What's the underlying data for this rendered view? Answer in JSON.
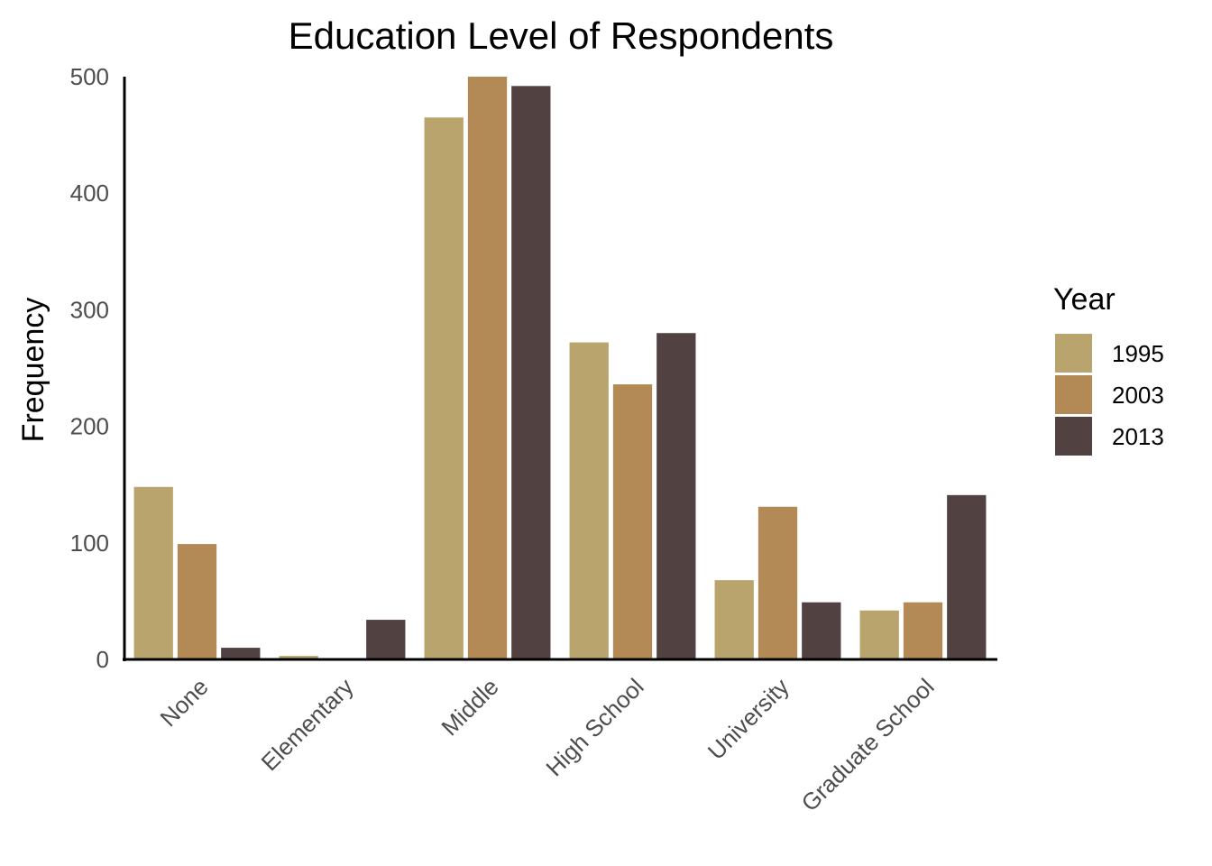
{
  "chart_data": {
    "type": "bar",
    "title": "Education Level of Respondents",
    "xlabel": "",
    "ylabel": "Frequency",
    "ylim": [
      0,
      500
    ],
    "yticks": [
      0,
      100,
      200,
      300,
      400,
      500
    ],
    "categories": [
      "None",
      "Elementary",
      "Middle",
      "High School",
      "University",
      "Graduate School"
    ],
    "legend": {
      "title": "Year",
      "position": "right"
    },
    "grid": false,
    "series": [
      {
        "name": "1995",
        "color": "#b8a46c",
        "values": [
          148,
          3,
          465,
          272,
          68,
          42
        ]
      },
      {
        "name": "2003",
        "color": "#b38955",
        "values": [
          99,
          0,
          500,
          236,
          131,
          49
        ]
      },
      {
        "name": "2013",
        "color": "#514140",
        "values": [
          10,
          34,
          492,
          280,
          49,
          141
        ]
      }
    ]
  }
}
